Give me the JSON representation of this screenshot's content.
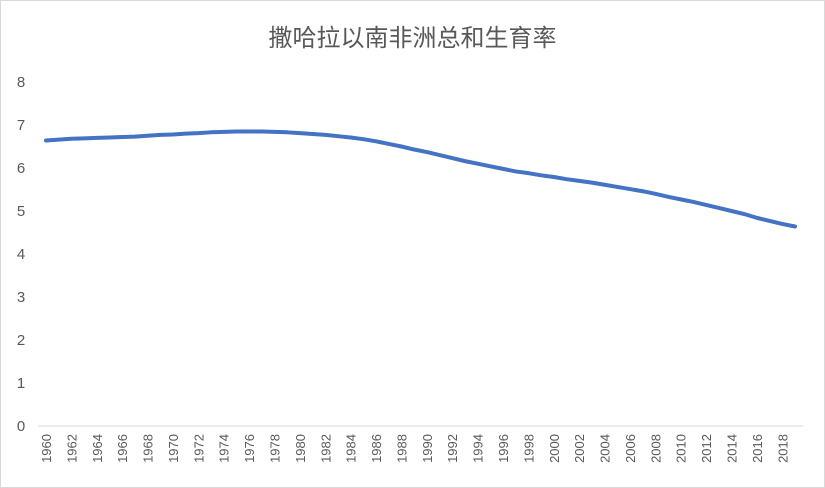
{
  "chart_data": {
    "type": "line",
    "title": "撒哈拉以南非洲总和生育率",
    "xlabel": "",
    "ylabel": "",
    "ylim": [
      0,
      8
    ],
    "y_ticks": [
      "0",
      "1",
      "2",
      "3",
      "4",
      "5",
      "6",
      "7",
      "8"
    ],
    "grid": false,
    "legend": "none",
    "line_color": "#4472C4",
    "x_ticks": [
      "1960",
      "1962",
      "1964",
      "1966",
      "1968",
      "1970",
      "1972",
      "1974",
      "1976",
      "1978",
      "1980",
      "1982",
      "1984",
      "1986",
      "1988",
      "1990",
      "1992",
      "1994",
      "1996",
      "1998",
      "2000",
      "2002",
      "2004",
      "2006",
      "2008",
      "2010",
      "2012",
      "2014",
      "2016",
      "2018"
    ],
    "x": [
      1960,
      1961,
      1962,
      1963,
      1964,
      1965,
      1966,
      1967,
      1968,
      1969,
      1970,
      1971,
      1972,
      1973,
      1974,
      1975,
      1976,
      1977,
      1978,
      1979,
      1980,
      1981,
      1982,
      1983,
      1984,
      1985,
      1986,
      1987,
      1988,
      1989,
      1990,
      1991,
      1992,
      1993,
      1994,
      1995,
      1996,
      1997,
      1998,
      1999,
      2000,
      2001,
      2002,
      2003,
      2004,
      2005,
      2006,
      2007,
      2008,
      2009,
      2010,
      2011,
      2012,
      2013,
      2014,
      2015,
      2016,
      2017,
      2018,
      2019
    ],
    "series": [
      {
        "values": [
          6.64,
          6.66,
          6.68,
          6.69,
          6.7,
          6.71,
          6.72,
          6.73,
          6.75,
          6.77,
          6.78,
          6.8,
          6.81,
          6.83,
          6.84,
          6.85,
          6.85,
          6.85,
          6.84,
          6.83,
          6.81,
          6.79,
          6.77,
          6.74,
          6.71,
          6.67,
          6.62,
          6.56,
          6.5,
          6.43,
          6.37,
          6.3,
          6.23,
          6.16,
          6.1,
          6.04,
          5.98,
          5.92,
          5.88,
          5.83,
          5.79,
          5.74,
          5.7,
          5.66,
          5.61,
          5.56,
          5.51,
          5.46,
          5.4,
          5.33,
          5.27,
          5.21,
          5.14,
          5.07,
          5.0,
          4.93,
          4.84,
          4.77,
          4.7,
          4.64
        ]
      }
    ]
  }
}
